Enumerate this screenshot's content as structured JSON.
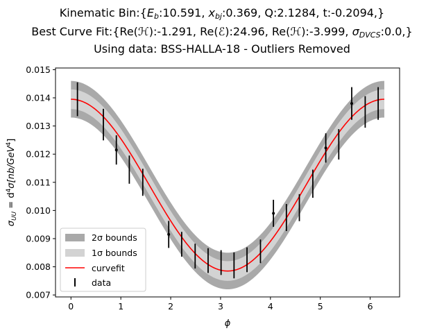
{
  "chart_data": {
    "type": "line",
    "title_lines": [
      "Kinematic Bin:{E_b:10.591, x_bj:0.369, Q:2.1284, t:-0.2094,}",
      "Best Curve Fit:{Re(H):-1.291, Re(E):24.96, Re(H~):-3.999, σ_DVCS:0.0,}",
      "Using data: BSS-HALLA-18 - Outliers Removed"
    ],
    "title_line1": {
      "prefix": "Kinematic Bin:{",
      "eb_sym": "E",
      "eb_sub": "b",
      "eb_val": ":10.591, ",
      "xbj_sym": "x",
      "xbj_sub": "bj",
      "xbj_val": ":0.369, Q:2.1284, t:-0.2094,}"
    },
    "title_line2": {
      "prefix": "Best Curve Fit:{Re(",
      "h_sym": "ℋ",
      "h_val": "):-1.291, Re(",
      "e_sym": "ℰ",
      "e_val": "):24.96, Re(",
      "ht_sym": "ℋ",
      "ht_val": "):-3.999, ",
      "sig_sym": "σ",
      "sig_sub": "DVCS",
      "sig_val": ":0.0,}"
    },
    "title_line3": "Using data: BSS-HALLA-18 - Outliers Removed",
    "xlabel": "ϕ",
    "ylabel_parts": {
      "sigma": "σ",
      "sub": "UU",
      "eq": " = d",
      "sup4": "4",
      "rest": "σ[nb/GeV",
      "sup4b": "4",
      "close": "]"
    },
    "xlim": [
      -0.31,
      6.59
    ],
    "ylim": [
      0.00693,
      0.01506
    ],
    "xticks": [
      0,
      1,
      2,
      3,
      4,
      5,
      6
    ],
    "xtick_labels": [
      "0",
      "1",
      "2",
      "3",
      "4",
      "5",
      "6"
    ],
    "yticks": [
      0.007,
      0.008,
      0.009,
      0.01,
      0.011,
      0.012,
      0.013,
      0.014,
      0.015
    ],
    "ytick_labels": [
      "0.007",
      "0.008",
      "0.009",
      "0.010",
      "0.011",
      "0.012",
      "0.013",
      "0.014",
      "0.015"
    ],
    "curvefit": {
      "center": 0.0109,
      "amplitude": 0.00305,
      "halfwidth_1sigma": 0.00035,
      "halfwidth_2sigma": 0.00065,
      "x_start": 0,
      "x_end": 6.2832
    },
    "data": {
      "x": [
        0.13,
        0.65,
        0.91,
        1.17,
        1.44,
        1.96,
        2.22,
        2.49,
        2.75,
        3.01,
        3.27,
        3.53,
        3.8,
        4.06,
        4.32,
        4.58,
        4.85,
        5.11,
        5.37,
        5.63,
        5.9,
        6.16
      ],
      "y": [
        0.01395,
        0.01305,
        0.01215,
        0.01145,
        0.011,
        0.00915,
        0.0088,
        0.00838,
        0.00822,
        0.00815,
        0.00805,
        0.00825,
        0.00855,
        0.0099,
        0.00975,
        0.0101,
        0.01095,
        0.01222,
        0.01235,
        0.0138,
        0.0135,
        0.0138
      ],
      "yerr": [
        0.0006,
        0.00056,
        0.00052,
        0.0005,
        0.00048,
        0.00048,
        0.00044,
        0.00044,
        0.00044,
        0.00044,
        0.00046,
        0.00044,
        0.00042,
        0.00048,
        0.00048,
        0.00048,
        0.0005,
        0.00052,
        0.00054,
        0.00058,
        0.00056,
        0.00058
      ],
      "show_marker": [
        false,
        false,
        true,
        false,
        false,
        true,
        false,
        false,
        false,
        false,
        false,
        false,
        false,
        true,
        false,
        false,
        false,
        true,
        false,
        true,
        false,
        false
      ]
    },
    "legend": {
      "placement": "lower-left",
      "entries": [
        "2σ bounds",
        "1σ bounds",
        "curvefit",
        "data"
      ]
    },
    "colors": {
      "band_2sigma": "#a9a9a9",
      "band_1sigma": "#d3d3d3",
      "curve": "#ff0000",
      "data": "#000000"
    }
  }
}
